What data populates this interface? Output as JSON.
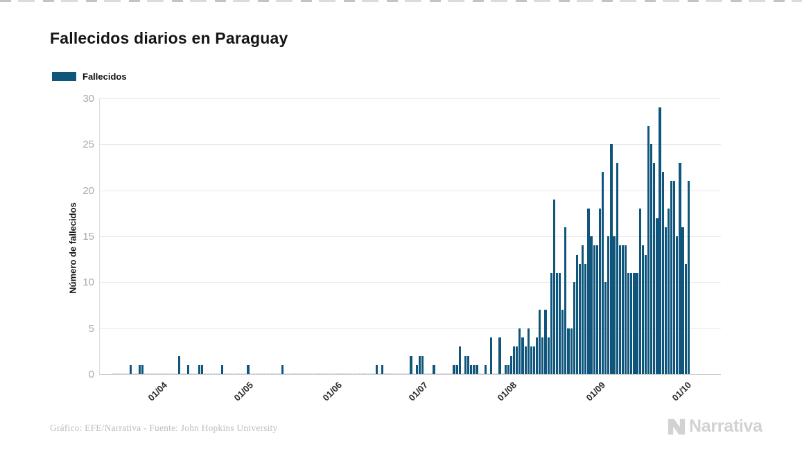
{
  "page": {
    "title": "Fallecidos diarios en Paraguay"
  },
  "legend": {
    "label": "Fallecidos",
    "color": "#10567C"
  },
  "footer": {
    "credit": "Gráfico: EFE/Narrativa - Fuente: John Hopkins University",
    "brand": "Narrativa"
  },
  "chart_data": {
    "type": "bar",
    "title": "Fallecidos diarios en Paraguay",
    "xlabel": "",
    "ylabel": "Número de fallecidos",
    "ylim": [
      0,
      30
    ],
    "yticks": [
      0,
      5,
      10,
      15,
      20,
      25,
      30
    ],
    "grid": true,
    "legend_entries": [
      "Fallecidos"
    ],
    "legend_position": "top-left",
    "bar_color": "#10567C",
    "x_range": [
      "2020-03-16",
      "2020-10-03"
    ],
    "xtick_dates": [
      "2020-04-01",
      "2020-05-01",
      "2020-06-01",
      "2020-07-01",
      "2020-08-01",
      "2020-09-01",
      "2020-10-01"
    ],
    "xtick_labels": [
      "01/04",
      "01/05",
      "01/06",
      "01/07",
      "01/08",
      "01/09",
      "01/10"
    ],
    "points": {
      "2020-03-22": 1,
      "2020-03-25": 1,
      "2020-03-26": 1,
      "2020-04-08": 2,
      "2020-04-11": 1,
      "2020-04-15": 1,
      "2020-04-16": 1,
      "2020-04-23": 1,
      "2020-05-02": 1,
      "2020-05-14": 1,
      "2020-06-16": 1,
      "2020-06-18": 1,
      "2020-06-28": 2,
      "2020-06-30": 1,
      "2020-07-01": 2,
      "2020-07-02": 2,
      "2020-07-06": 1,
      "2020-07-13": 1,
      "2020-07-14": 1,
      "2020-07-15": 3,
      "2020-07-17": 2,
      "2020-07-18": 2,
      "2020-07-19": 1,
      "2020-07-20": 1,
      "2020-07-21": 1,
      "2020-07-24": 1,
      "2020-07-26": 4,
      "2020-07-29": 4,
      "2020-07-31": 1,
      "2020-08-01": 1,
      "2020-08-02": 2,
      "2020-08-03": 3,
      "2020-08-04": 3,
      "2020-08-05": 5,
      "2020-08-06": 4,
      "2020-08-07": 3,
      "2020-08-08": 5,
      "2020-08-09": 3,
      "2020-08-10": 3,
      "2020-08-11": 4,
      "2020-08-12": 7,
      "2020-08-13": 4,
      "2020-08-14": 7,
      "2020-08-15": 4,
      "2020-08-16": 11,
      "2020-08-17": 19,
      "2020-08-18": 11,
      "2020-08-19": 11,
      "2020-08-20": 7,
      "2020-08-21": 16,
      "2020-08-22": 5,
      "2020-08-23": 5,
      "2020-08-24": 10,
      "2020-08-25": 13,
      "2020-08-26": 12,
      "2020-08-27": 14,
      "2020-08-28": 12,
      "2020-08-29": 18,
      "2020-08-30": 15,
      "2020-08-31": 14,
      "2020-09-01": 14,
      "2020-09-02": 18,
      "2020-09-03": 22,
      "2020-09-04": 10,
      "2020-09-05": 15,
      "2020-09-06": 25,
      "2020-09-07": 15,
      "2020-09-08": 23,
      "2020-09-09": 14,
      "2020-09-10": 14,
      "2020-09-11": 14,
      "2020-09-12": 11,
      "2020-09-13": 11,
      "2020-09-14": 11,
      "2020-09-15": 11,
      "2020-09-16": 18,
      "2020-09-17": 14,
      "2020-09-18": 13,
      "2020-09-19": 27,
      "2020-09-20": 25,
      "2020-09-21": 23,
      "2020-09-22": 17,
      "2020-09-23": 29,
      "2020-09-24": 22,
      "2020-09-25": 16,
      "2020-09-26": 18,
      "2020-09-27": 21,
      "2020-09-28": 21,
      "2020-09-29": 15,
      "2020-09-30": 23,
      "2020-10-01": 16,
      "2020-10-02": 12,
      "2020-10-03": 21
    }
  }
}
